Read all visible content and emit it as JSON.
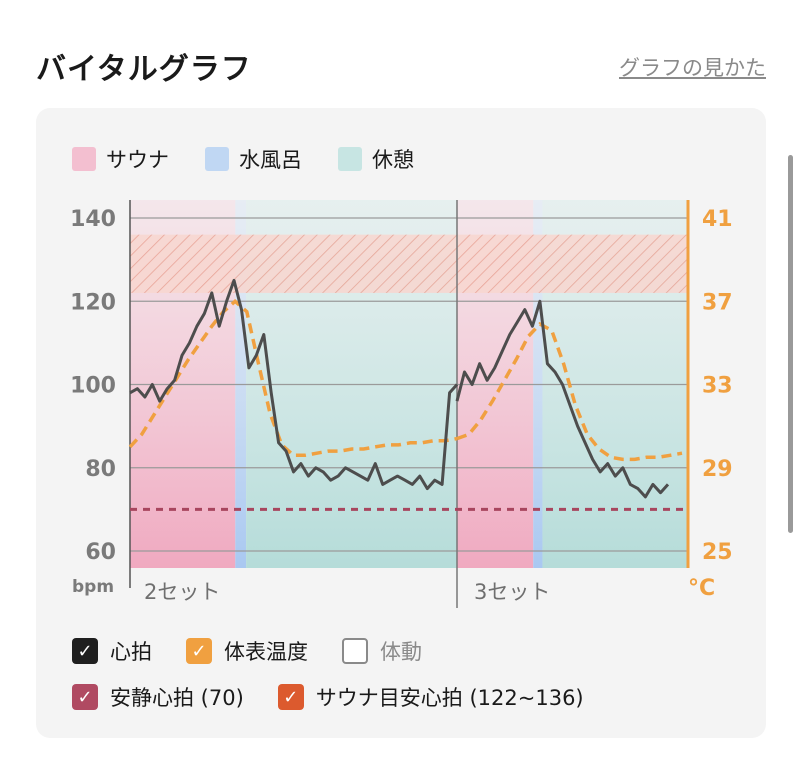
{
  "header": {
    "title": "バイタルグラフ",
    "howto_link": "グラフの見かた"
  },
  "legend": [
    {
      "label": "サウナ",
      "color": "#f3bfd0"
    },
    {
      "label": "水風呂",
      "color": "#c0d7f3"
    },
    {
      "label": "休憩",
      "color": "#c7e5e3"
    }
  ],
  "chart_data": {
    "type": "line",
    "left_axis": {
      "unit": "bpm",
      "ticks": [
        140,
        120,
        100,
        80,
        60
      ],
      "range": [
        60,
        140
      ]
    },
    "right_axis": {
      "unit": "°C",
      "ticks": [
        41,
        37,
        33,
        29,
        25
      ],
      "range": [
        25,
        41
      ]
    },
    "sets": [
      {
        "label": "2セット",
        "phases": {
          "sauna": [
            0,
            0.322
          ],
          "cold_bath": [
            0.322,
            0.355
          ],
          "rest": [
            0.355,
            1
          ]
        }
      },
      {
        "label": "3セット",
        "phases": {
          "sauna": [
            0,
            0.33
          ],
          "cold_bath": [
            0.33,
            0.37
          ],
          "rest": [
            0.37,
            1
          ]
        }
      }
    ],
    "sauna_target_band": [
      122,
      136
    ],
    "resting_hr": 70,
    "series": [
      {
        "name": "心拍",
        "color": "#4d4d4d",
        "set1": [
          98,
          99,
          97,
          100,
          96,
          99,
          101,
          107,
          110,
          114,
          117,
          122,
          114,
          120,
          125,
          118,
          104,
          107,
          112,
          98,
          86,
          84,
          79,
          81,
          78,
          80,
          79,
          77,
          78,
          80,
          79,
          78,
          77,
          81,
          76,
          77,
          78,
          77,
          76,
          78,
          75,
          77,
          76,
          98,
          100
        ],
        "set2": [
          96,
          103,
          100,
          105,
          101,
          104,
          108,
          112,
          115,
          118,
          114,
          120,
          105,
          103,
          100,
          95,
          90,
          86,
          82,
          79,
          81,
          78,
          80,
          76,
          75,
          73,
          76,
          74,
          76
        ]
      },
      {
        "name": "体表温度",
        "color": "#f0a040",
        "set1": [
          30.0,
          30.6,
          31.5,
          32.4,
          33.3,
          34.2,
          35.0,
          35.8,
          36.5,
          37.0,
          36.5,
          34.0,
          31.6,
          30.1,
          29.6,
          29.6,
          29.7,
          29.8,
          29.8,
          29.9,
          29.9,
          30.0,
          30.1,
          30.1,
          30.2,
          30.2,
          30.3,
          30.3,
          30.4
        ],
        "set2": [
          30.4,
          30.6,
          31.3,
          32.2,
          33.2,
          34.2,
          35.3,
          35.9,
          35.6,
          34.0,
          32.0,
          30.6,
          29.9,
          29.5,
          29.4,
          29.4,
          29.5,
          29.5,
          29.6,
          29.7
        ]
      }
    ]
  },
  "checkboxes": [
    {
      "label": "心拍",
      "checked": true,
      "color": "#1f1f1f"
    },
    {
      "label": "体表温度",
      "checked": true,
      "color": "#f0a040"
    },
    {
      "label": "体動",
      "checked": false,
      "color": "#8a8a8a"
    },
    {
      "label": "安静心拍 (70)",
      "checked": true,
      "color": "#b04a62"
    },
    {
      "label": "サウナ目安心拍 (122~136)",
      "checked": true,
      "color": "#dc5a2e"
    }
  ],
  "checkmark": "✓"
}
